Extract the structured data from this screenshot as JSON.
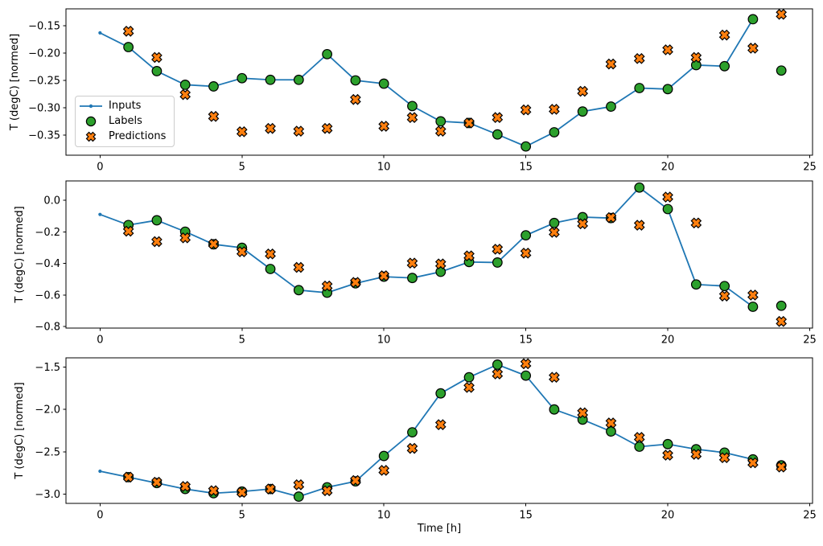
{
  "figure": {
    "background": "#ffffff",
    "colors": {
      "inputs": "#1f77b4",
      "labels": "#2ca02c",
      "predictions": "#ff7f0e",
      "marker_edge": "#000000",
      "axis": "#000000",
      "tick_text": "#000000",
      "legend_border": "#cccccc",
      "legend_background": "#ffffff"
    }
  },
  "legend": {
    "entries": [
      {
        "label": "Inputs",
        "marker": "line-with-dot",
        "color_key": "inputs"
      },
      {
        "label": "Labels",
        "marker": "circle",
        "color_key": "labels"
      },
      {
        "label": "Predictions",
        "marker": "x-cross",
        "color_key": "predictions"
      }
    ]
  },
  "chart_data": [
    {
      "type": "line",
      "title": "",
      "xlabel": "",
      "ylabel": "T (degC) [normed]",
      "grid": false,
      "legend_position": "center left of this subplot",
      "xlim": [
        -1.2,
        25.1
      ],
      "ylim": [
        -0.387,
        -0.119
      ],
      "xtick_values": [
        0,
        5,
        10,
        15,
        20,
        25
      ],
      "xtick_labels": [
        "0",
        "5",
        "10",
        "15",
        "20",
        "25"
      ],
      "ytick_values": [
        -0.15,
        -0.2,
        -0.25,
        -0.3,
        -0.35
      ],
      "ytick_labels": [
        "−0.15",
        "−0.20",
        "−0.25",
        "−0.30",
        "−0.35"
      ],
      "series": [
        {
          "name": "Inputs",
          "render": "line",
          "color_key": "inputs",
          "x": [
            0,
            1,
            2,
            3,
            4,
            5,
            6,
            7,
            8,
            9,
            10,
            11,
            12,
            13,
            14,
            15,
            16,
            17,
            18,
            19,
            20,
            21,
            22,
            23
          ],
          "y": [
            -0.163,
            -0.189,
            -0.233,
            -0.258,
            -0.261,
            -0.246,
            -0.249,
            -0.249,
            -0.202,
            -0.25,
            -0.256,
            -0.297,
            -0.325,
            -0.328,
            -0.349,
            -0.371,
            -0.345,
            -0.307,
            -0.298,
            -0.264,
            -0.266,
            -0.222,
            -0.224,
            -0.138
          ]
        },
        {
          "name": "Labels",
          "render": "scatter-circle",
          "color_key": "labels",
          "x": [
            1,
            2,
            3,
            4,
            5,
            6,
            7,
            8,
            9,
            10,
            11,
            12,
            13,
            14,
            15,
            16,
            17,
            18,
            19,
            20,
            21,
            22,
            23,
            24
          ],
          "y": [
            -0.189,
            -0.233,
            -0.258,
            -0.261,
            -0.246,
            -0.249,
            -0.249,
            -0.202,
            -0.25,
            -0.256,
            -0.297,
            -0.325,
            -0.328,
            -0.349,
            -0.371,
            -0.345,
            -0.307,
            -0.298,
            -0.264,
            -0.266,
            -0.222,
            -0.224,
            -0.138,
            -0.232
          ]
        },
        {
          "name": "Predictions",
          "render": "scatter-x",
          "color_key": "predictions",
          "x": [
            1,
            2,
            3,
            4,
            5,
            6,
            7,
            8,
            9,
            10,
            11,
            12,
            13,
            14,
            15,
            16,
            17,
            18,
            19,
            20,
            21,
            22,
            23,
            24
          ],
          "y": [
            -0.16,
            -0.208,
            -0.276,
            -0.316,
            -0.344,
            -0.338,
            -0.343,
            -0.338,
            -0.285,
            -0.334,
            -0.318,
            -0.343,
            -0.328,
            -0.318,
            -0.304,
            -0.303,
            -0.27,
            -0.22,
            -0.21,
            -0.194,
            -0.208,
            -0.167,
            -0.191,
            -0.129
          ]
        }
      ]
    },
    {
      "type": "line",
      "title": "",
      "xlabel": "",
      "ylabel": "T (degC) [normed]",
      "grid": false,
      "xlim": [
        -1.2,
        25.1
      ],
      "ylim": [
        -0.809,
        0.122
      ],
      "xtick_values": [
        0,
        5,
        10,
        15,
        20,
        25
      ],
      "xtick_labels": [
        "0",
        "5",
        "10",
        "15",
        "20",
        "25"
      ],
      "ytick_values": [
        0.0,
        -0.2,
        -0.4,
        -0.6,
        -0.8
      ],
      "ytick_labels": [
        "0.0",
        "−0.2",
        "−0.4",
        "−0.6",
        "−0.8"
      ],
      "series": [
        {
          "name": "Inputs",
          "render": "line",
          "color_key": "inputs",
          "x": [
            0,
            1,
            2,
            3,
            4,
            5,
            6,
            7,
            8,
            9,
            10,
            11,
            12,
            13,
            14,
            15,
            16,
            17,
            18,
            19,
            20,
            21,
            22,
            23
          ],
          "y": [
            -0.09,
            -0.157,
            -0.127,
            -0.199,
            -0.279,
            -0.301,
            -0.435,
            -0.569,
            -0.585,
            -0.526,
            -0.484,
            -0.492,
            -0.453,
            -0.391,
            -0.394,
            -0.222,
            -0.144,
            -0.107,
            -0.113,
            0.08,
            -0.056,
            -0.533,
            -0.543,
            -0.674
          ]
        },
        {
          "name": "Labels",
          "render": "scatter-circle",
          "color_key": "labels",
          "x": [
            1,
            2,
            3,
            4,
            5,
            6,
            7,
            8,
            9,
            10,
            11,
            12,
            13,
            14,
            15,
            16,
            17,
            18,
            19,
            20,
            21,
            22,
            23,
            24
          ],
          "y": [
            -0.157,
            -0.127,
            -0.199,
            -0.279,
            -0.301,
            -0.435,
            -0.569,
            -0.585,
            -0.526,
            -0.484,
            -0.492,
            -0.453,
            -0.391,
            -0.394,
            -0.222,
            -0.144,
            -0.107,
            -0.113,
            0.08,
            -0.056,
            -0.533,
            -0.543,
            -0.674,
            -0.668
          ]
        },
        {
          "name": "Predictions",
          "render": "scatter-x",
          "color_key": "predictions",
          "x": [
            1,
            2,
            3,
            4,
            5,
            6,
            7,
            8,
            9,
            10,
            11,
            12,
            13,
            14,
            15,
            16,
            17,
            18,
            19,
            20,
            21,
            22,
            23,
            24
          ],
          "y": [
            -0.196,
            -0.262,
            -0.238,
            -0.277,
            -0.326,
            -0.34,
            -0.425,
            -0.543,
            -0.52,
            -0.478,
            -0.398,
            -0.403,
            -0.352,
            -0.31,
            -0.335,
            -0.203,
            -0.149,
            -0.11,
            -0.158,
            0.02,
            -0.144,
            -0.606,
            -0.6,
            -0.767
          ]
        }
      ]
    },
    {
      "type": "line",
      "title": "",
      "xlabel": "Time [h]",
      "ylabel": "T (degC) [normed]",
      "grid": false,
      "xlim": [
        -1.2,
        25.1
      ],
      "ylim": [
        -3.11,
        -1.39
      ],
      "xtick_values": [
        0,
        5,
        10,
        15,
        20,
        25
      ],
      "xtick_labels": [
        "0",
        "5",
        "10",
        "15",
        "20",
        "25"
      ],
      "ytick_values": [
        -1.5,
        -2.0,
        -2.5,
        -3.0
      ],
      "ytick_labels": [
        "−1.5",
        "−2.0",
        "−2.5",
        "−3.0"
      ],
      "series": [
        {
          "name": "Inputs",
          "render": "line",
          "color_key": "inputs",
          "x": [
            0,
            1,
            2,
            3,
            4,
            5,
            6,
            7,
            8,
            9,
            10,
            11,
            12,
            13,
            14,
            15,
            16,
            17,
            18,
            19,
            20,
            21,
            22,
            23
          ],
          "y": [
            -2.73,
            -2.8,
            -2.87,
            -2.94,
            -2.99,
            -2.97,
            -2.94,
            -3.03,
            -2.92,
            -2.85,
            -2.55,
            -2.27,
            -1.81,
            -1.62,
            -1.47,
            -1.6,
            -2.0,
            -2.12,
            -2.26,
            -2.44,
            -2.41,
            -2.47,
            -2.51,
            -2.59
          ]
        },
        {
          "name": "Labels",
          "render": "scatter-circle",
          "color_key": "labels",
          "x": [
            1,
            2,
            3,
            4,
            5,
            6,
            7,
            8,
            9,
            10,
            11,
            12,
            13,
            14,
            15,
            16,
            17,
            18,
            19,
            20,
            21,
            22,
            23,
            24
          ],
          "y": [
            -2.8,
            -2.87,
            -2.94,
            -2.99,
            -2.97,
            -2.94,
            -3.03,
            -2.92,
            -2.85,
            -2.55,
            -2.27,
            -1.81,
            -1.62,
            -1.47,
            -1.6,
            -2.0,
            -2.12,
            -2.26,
            -2.44,
            -2.41,
            -2.47,
            -2.51,
            -2.59,
            -2.66
          ]
        },
        {
          "name": "Predictions",
          "render": "scatter-x",
          "color_key": "predictions",
          "x": [
            1,
            2,
            3,
            4,
            5,
            6,
            7,
            8,
            9,
            10,
            11,
            12,
            13,
            14,
            15,
            16,
            17,
            18,
            19,
            20,
            21,
            22,
            23,
            24
          ],
          "y": [
            -2.8,
            -2.86,
            -2.91,
            -2.96,
            -2.98,
            -2.94,
            -2.89,
            -2.96,
            -2.84,
            -2.72,
            -2.46,
            -2.18,
            -1.74,
            -1.58,
            -1.46,
            -1.62,
            -2.04,
            -2.16,
            -2.33,
            -2.54,
            -2.53,
            -2.57,
            -2.63,
            -2.68
          ]
        }
      ]
    }
  ]
}
